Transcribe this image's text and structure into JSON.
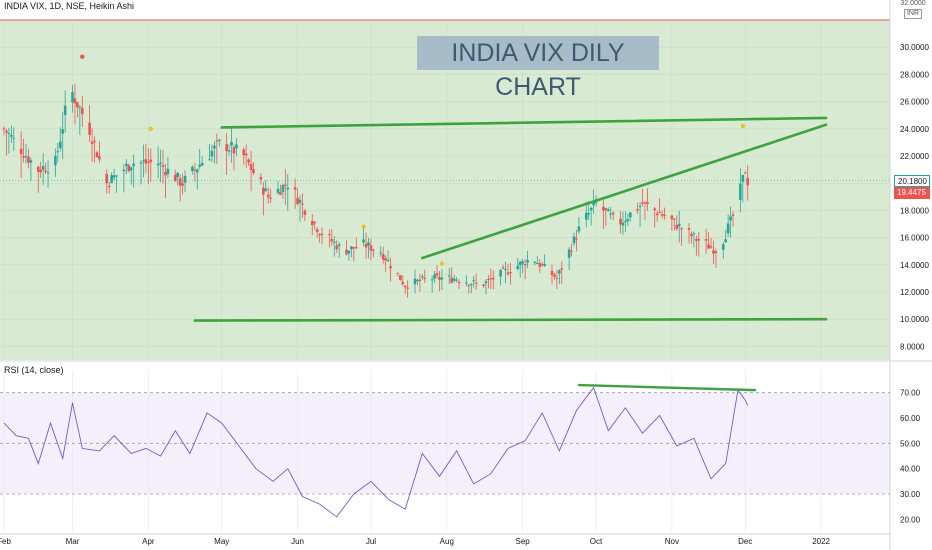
{
  "header": {
    "symbol_line": "INDIA VIX, 1D, NSE, Heikin Ashi"
  },
  "annotation": {
    "banner": "INDIA VIX DILY CHART"
  },
  "currency": {
    "top_value": "32.0000",
    "code": "INR"
  },
  "price_tags": {
    "last": "20.1800",
    "prev": "19.4475"
  },
  "colors": {
    "up": "#26a69a",
    "down": "#ef5350",
    "trendline": "#3ea33e",
    "rsi_line": "#7e57c2",
    "main_bg": "#d9ead3",
    "rsi_bg": "#f3effb",
    "last_tag_bg": "#ffffff",
    "prev_tag_bg": "#ef5350"
  },
  "chart_data": [
    {
      "type": "candlestick",
      "title": "INDIA VIX, 1D, NSE, Heikin Ashi",
      "ylim": [
        7,
        32
      ],
      "y_ticks": [
        "30.0000",
        "28.0000",
        "26.0000",
        "24.0000",
        "22.0000",
        "20.0000",
        "18.0000",
        "16.0000",
        "14.0000",
        "12.0000",
        "10.0000",
        "8.0000"
      ],
      "x_ticks": [
        "Feb",
        "Mar",
        "Apr",
        "May",
        "Jun",
        "Jul",
        "Aug",
        "Sep",
        "Oct",
        "Nov",
        "Dec",
        "2022"
      ],
      "x_range": [
        "2021-02-01",
        "2022-01-03"
      ],
      "series": [
        {
          "name": "Heikin Ashi",
          "anchors": [
            [
              "2021-02-01",
              24.0
            ],
            [
              "2021-02-15",
              21.0
            ],
            [
              "2021-02-22",
              21.5
            ],
            [
              "2021-02-28",
              27.0
            ],
            [
              "2021-03-08",
              24.0
            ],
            [
              "2021-03-15",
              20.0
            ],
            [
              "2021-03-25",
              21.5
            ],
            [
              "2021-04-05",
              21.5
            ],
            [
              "2021-04-15",
              20.0
            ],
            [
              "2021-04-25",
              22.0
            ],
            [
              "2021-05-01",
              23.0
            ],
            [
              "2021-05-10",
              22.0
            ],
            [
              "2021-05-20",
              19.0
            ],
            [
              "2021-05-28",
              20.0
            ],
            [
              "2021-06-10",
              16.5
            ],
            [
              "2021-06-20",
              15.0
            ],
            [
              "2021-06-28",
              15.5
            ],
            [
              "2021-07-05",
              15.0
            ],
            [
              "2021-07-15",
              12.5
            ],
            [
              "2021-07-25",
              13.0
            ],
            [
              "2021-08-05",
              13.0
            ],
            [
              "2021-08-15",
              12.5
            ],
            [
              "2021-08-25",
              13.5
            ],
            [
              "2021-09-05",
              14.5
            ],
            [
              "2021-09-15",
              13.0
            ],
            [
              "2021-09-25",
              17.0
            ],
            [
              "2021-10-01",
              18.5
            ],
            [
              "2021-10-10",
              17.0
            ],
            [
              "2021-10-20",
              18.5
            ],
            [
              "2021-10-30",
              17.5
            ],
            [
              "2021-11-10",
              16.0
            ],
            [
              "2021-11-20",
              15.0
            ],
            [
              "2021-11-27",
              18.0
            ],
            [
              "2021-12-01",
              21.0
            ],
            [
              "2021-12-02",
              20.18
            ]
          ]
        }
      ],
      "trendlines": [
        {
          "from": [
            "2021-05-01",
            24.1
          ],
          "to": [
            "2022-01-03",
            24.8
          ]
        },
        {
          "from": [
            "2021-07-22",
            14.5
          ],
          "to": [
            "2022-01-03",
            24.3
          ]
        },
        {
          "from": [
            "2021-04-20",
            9.9
          ],
          "to": [
            "2022-01-03",
            10.0
          ]
        }
      ],
      "last_price": 20.18,
      "prev_price": 19.4475
    },
    {
      "type": "line",
      "title": "RSI (14, close)",
      "ylim": [
        15,
        75
      ],
      "y_ticks": [
        "70.00",
        "60.00",
        "50.00",
        "40.00",
        "30.00",
        "20.00"
      ],
      "guide_levels": [
        70,
        50,
        30
      ],
      "x_range": [
        "2021-02-01",
        "2022-01-03"
      ],
      "series": [
        {
          "name": "RSI (14, close)",
          "points": [
            [
              "2021-02-01",
              58
            ],
            [
              "2021-02-06",
              53
            ],
            [
              "2021-02-11",
              52
            ],
            [
              "2021-02-15",
              42
            ],
            [
              "2021-02-20",
              58
            ],
            [
              "2021-02-25",
              44
            ],
            [
              "2021-03-01",
              66
            ],
            [
              "2021-03-05",
              48
            ],
            [
              "2021-03-12",
              47
            ],
            [
              "2021-03-18",
              53
            ],
            [
              "2021-03-25",
              46
            ],
            [
              "2021-03-31",
              48
            ],
            [
              "2021-04-06",
              45
            ],
            [
              "2021-04-12",
              55
            ],
            [
              "2021-04-18",
              46
            ],
            [
              "2021-04-25",
              62
            ],
            [
              "2021-05-01",
              58
            ],
            [
              "2021-05-08",
              49
            ],
            [
              "2021-05-15",
              40
            ],
            [
              "2021-05-22",
              35
            ],
            [
              "2021-05-28",
              40
            ],
            [
              "2021-06-03",
              29
            ],
            [
              "2021-06-10",
              26
            ],
            [
              "2021-06-17",
              21
            ],
            [
              "2021-06-24",
              30
            ],
            [
              "2021-07-01",
              35
            ],
            [
              "2021-07-08",
              28
            ],
            [
              "2021-07-15",
              24
            ],
            [
              "2021-07-22",
              46
            ],
            [
              "2021-07-29",
              37
            ],
            [
              "2021-08-05",
              47
            ],
            [
              "2021-08-12",
              34
            ],
            [
              "2021-08-19",
              38
            ],
            [
              "2021-08-26",
              48
            ],
            [
              "2021-09-02",
              51
            ],
            [
              "2021-09-09",
              62
            ],
            [
              "2021-09-16",
              47
            ],
            [
              "2021-09-23",
              63
            ],
            [
              "2021-09-30",
              72
            ],
            [
              "2021-10-06",
              55
            ],
            [
              "2021-10-13",
              64
            ],
            [
              "2021-10-20",
              54
            ],
            [
              "2021-10-27",
              61
            ],
            [
              "2021-11-03",
              49
            ],
            [
              "2021-11-10",
              52
            ],
            [
              "2021-11-17",
              36
            ],
            [
              "2021-11-23",
              42
            ],
            [
              "2021-11-28",
              71
            ],
            [
              "2021-12-01",
              67
            ],
            [
              "2021-12-02",
              65
            ]
          ]
        }
      ],
      "trendlines": [
        {
          "from": [
            "2021-09-24",
            73
          ],
          "to": [
            "2021-12-05",
            71
          ]
        }
      ]
    }
  ]
}
